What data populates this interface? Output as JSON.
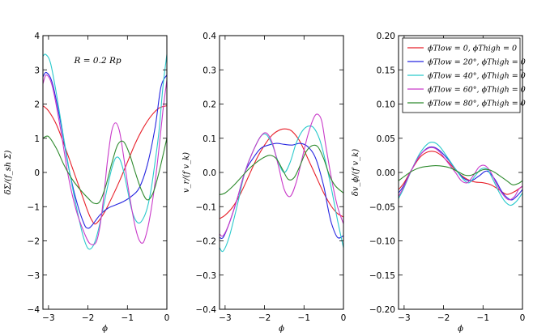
{
  "legend": [
    {
      "label": "ϕTlow = 0, ϕThigh = 0",
      "color": "#e8202a"
    },
    {
      "label": "ϕTlow = 20°, ϕThigh = 0",
      "color": "#2626e0"
    },
    {
      "label": "ϕTlow = 40°, ϕThigh = 0",
      "color": "#2ac9cc"
    },
    {
      "label": "ϕTlow = 60°, ϕThigh = 0",
      "color": "#c93ac9"
    },
    {
      "label": "ϕTlow = 80°, ϕThigh = 0",
      "color": "#2e8a2e"
    }
  ],
  "chart_data": [
    {
      "type": "line",
      "title": "",
      "annotation": "R = 0.2 Rp",
      "xlabel": "ϕ",
      "ylabel": "δΣ/(f_sh Σ)",
      "xlim": [
        -3.14159,
        0
      ],
      "ylim": [
        -4,
        4
      ],
      "xticks": [
        -3,
        -2,
        -1,
        0
      ],
      "yticks": [
        -4,
        -3,
        -2,
        -1,
        0,
        1,
        2,
        3,
        4
      ],
      "ytick_labels": [
        "−4",
        "−3",
        "−2",
        "−1",
        "0",
        "1",
        "2",
        "3",
        "4"
      ],
      "series": [
        {
          "name": "ϕTlow = 0, ϕThigh = 0",
          "color": "#e8202a",
          "x": [
            -3.14,
            -3.0,
            -2.8,
            -2.6,
            -2.4,
            -2.2,
            -2.0,
            -1.9,
            -1.8,
            -1.6,
            -1.4,
            -1.2,
            -1.0,
            -0.8,
            -0.6,
            -0.4,
            -0.2,
            0.0
          ],
          "y": [
            1.95,
            1.8,
            1.4,
            0.8,
            0.15,
            -0.5,
            -1.15,
            -1.4,
            -1.5,
            -1.2,
            -0.75,
            -0.25,
            0.3,
            0.85,
            1.3,
            1.65,
            1.88,
            1.95
          ]
        },
        {
          "name": "ϕTlow = 20°, ϕThigh = 0",
          "color": "#2626e0",
          "x": [
            -3.14,
            -3.05,
            -2.9,
            -2.7,
            -2.5,
            -2.3,
            -2.1,
            -2.0,
            -1.9,
            -1.7,
            -1.5,
            -1.3,
            -1.1,
            -0.9,
            -0.7,
            -0.5,
            -0.3,
            -0.15,
            0.0
          ],
          "y": [
            2.8,
            2.92,
            2.6,
            1.5,
            0.2,
            -0.8,
            -1.5,
            -1.63,
            -1.55,
            -1.25,
            -1.05,
            -0.95,
            -0.85,
            -0.7,
            -0.45,
            0.2,
            1.3,
            2.5,
            2.85
          ]
        },
        {
          "name": "ϕTlow = 40°, ϕThigh = 0",
          "color": "#2ac9cc",
          "x": [
            -3.14,
            -3.07,
            -2.95,
            -2.8,
            -2.6,
            -2.4,
            -2.2,
            -2.1,
            -2.0,
            -1.9,
            -1.8,
            -1.7,
            -1.6,
            -1.5,
            -1.4,
            -1.3,
            -1.2,
            -1.1,
            -1.0,
            -0.9,
            -0.8,
            -0.7,
            -0.6,
            -0.5,
            -0.4,
            -0.3,
            -0.2,
            -0.1,
            0.0
          ],
          "y": [
            3.4,
            3.45,
            3.2,
            2.3,
            0.9,
            -0.4,
            -1.5,
            -1.95,
            -2.22,
            -2.2,
            -1.95,
            -1.5,
            -0.95,
            -0.4,
            0.1,
            0.42,
            0.4,
            0.05,
            -0.5,
            -1.05,
            -1.38,
            -1.48,
            -1.35,
            -1.05,
            -0.5,
            0.3,
            1.2,
            2.5,
            3.45
          ]
        },
        {
          "name": "ϕTlow = 60°, ϕThigh = 0",
          "color": "#c93ac9",
          "x": [
            -3.14,
            -3.05,
            -2.9,
            -2.7,
            -2.5,
            -2.3,
            -2.1,
            -1.95,
            -1.8,
            -1.7,
            -1.6,
            -1.5,
            -1.4,
            -1.3,
            -1.2,
            -1.1,
            -1.0,
            -0.9,
            -0.8,
            -0.7,
            -0.6,
            -0.5,
            -0.4,
            -0.3,
            -0.2,
            -0.1,
            0.0
          ],
          "y": [
            2.6,
            2.85,
            2.5,
            1.3,
            -0.1,
            -1.1,
            -1.75,
            -2.08,
            -2.05,
            -1.6,
            -0.7,
            0.4,
            1.2,
            1.45,
            1.2,
            0.5,
            -0.3,
            -1.0,
            -1.6,
            -1.98,
            -2.05,
            -1.7,
            -1.1,
            -0.3,
            0.7,
            1.8,
            2.7
          ]
        },
        {
          "name": "ϕTlow = 80°, ϕThigh = 0",
          "color": "#2e8a2e",
          "x": [
            -3.14,
            -3.0,
            -2.8,
            -2.6,
            -2.4,
            -2.2,
            -2.0,
            -1.85,
            -1.7,
            -1.55,
            -1.4,
            -1.25,
            -1.1,
            -0.95,
            -0.8,
            -0.65,
            -0.5,
            -0.35,
            -0.2,
            0.0
          ],
          "y": [
            1.0,
            1.05,
            0.7,
            0.2,
            -0.2,
            -0.5,
            -0.75,
            -0.9,
            -0.85,
            -0.4,
            0.25,
            0.8,
            0.9,
            0.55,
            0.0,
            -0.5,
            -0.8,
            -0.6,
            0.0,
            1.0
          ]
        }
      ]
    },
    {
      "type": "line",
      "title": "",
      "xlabel": "ϕ",
      "ylabel": "v_r/(f v_k)",
      "xlim": [
        -3.14159,
        0
      ],
      "ylim": [
        -0.4,
        0.4
      ],
      "xticks": [
        -3,
        -2,
        -1,
        0
      ],
      "yticks": [
        -0.4,
        -0.3,
        -0.2,
        -0.1,
        0.0,
        0.1,
        0.2,
        0.3,
        0.4
      ],
      "ytick_labels": [
        "−0.4",
        "−0.3",
        "−0.2",
        "−0.1",
        "0.0",
        "0.1",
        "0.2",
        "0.3",
        "0.4"
      ],
      "series": [
        {
          "name": "ϕTlow = 0, ϕThigh = 0",
          "color": "#e8202a",
          "x": [
            -3.14,
            -3.0,
            -2.8,
            -2.6,
            -2.4,
            -2.2,
            -2.0,
            -1.8,
            -1.6,
            -1.45,
            -1.3,
            -1.1,
            -0.9,
            -0.7,
            -0.5,
            -0.3,
            -0.15,
            0.0
          ],
          "y": [
            -0.135,
            -0.125,
            -0.1,
            -0.06,
            -0.01,
            0.04,
            0.08,
            0.11,
            0.125,
            0.127,
            0.12,
            0.09,
            0.04,
            -0.01,
            -0.06,
            -0.1,
            -0.12,
            -0.13
          ]
        },
        {
          "name": "ϕTlow = 20°, ϕThigh = 0",
          "color": "#2626e0",
          "x": [
            -3.14,
            -3.05,
            -2.9,
            -2.7,
            -2.5,
            -2.3,
            -2.1,
            -1.9,
            -1.7,
            -1.5,
            -1.3,
            -1.1,
            -0.9,
            -0.7,
            -0.5,
            -0.4,
            -0.3,
            -0.15,
            0.0
          ],
          "y": [
            -0.19,
            -0.19,
            -0.15,
            -0.08,
            0.0,
            0.04,
            0.07,
            0.08,
            0.085,
            0.082,
            0.08,
            0.085,
            0.075,
            0.04,
            -0.04,
            -0.1,
            -0.15,
            -0.19,
            -0.185
          ]
        },
        {
          "name": "ϕTlow = 40°, ϕThigh = 0",
          "color": "#2ac9cc",
          "x": [
            -3.14,
            -3.05,
            -2.9,
            -2.7,
            -2.5,
            -2.3,
            -2.1,
            -1.95,
            -1.8,
            -1.65,
            -1.5,
            -1.35,
            -1.2,
            -1.05,
            -0.9,
            -0.75,
            -0.6,
            -0.45,
            -0.3,
            -0.15,
            0.0
          ],
          "y": [
            -0.22,
            -0.23,
            -0.19,
            -0.1,
            0.0,
            0.06,
            0.105,
            0.11,
            0.08,
            0.03,
            0.0,
            0.03,
            0.085,
            0.12,
            0.135,
            0.13,
            0.095,
            0.03,
            -0.05,
            -0.14,
            -0.22
          ]
        },
        {
          "name": "ϕTlow = 60°, ϕThigh = 0",
          "color": "#c93ac9",
          "x": [
            -3.14,
            -3.05,
            -2.9,
            -2.7,
            -2.5,
            -2.3,
            -2.1,
            -1.95,
            -1.8,
            -1.65,
            -1.5,
            -1.35,
            -1.2,
            -1.05,
            -0.9,
            -0.75,
            -0.65,
            -0.55,
            -0.45,
            -0.3,
            -0.15,
            0.0
          ],
          "y": [
            -0.18,
            -0.185,
            -0.15,
            -0.08,
            0.0,
            0.06,
            0.105,
            0.115,
            0.085,
            0.02,
            -0.05,
            -0.07,
            -0.03,
            0.04,
            0.11,
            0.16,
            0.17,
            0.15,
            0.08,
            -0.02,
            -0.1,
            -0.15
          ]
        },
        {
          "name": "ϕTlow = 80°, ϕThigh = 0",
          "color": "#2e8a2e",
          "x": [
            -3.14,
            -3.0,
            -2.8,
            -2.6,
            -2.4,
            -2.2,
            -2.0,
            -1.85,
            -1.7,
            -1.55,
            -1.4,
            -1.25,
            -1.1,
            -0.95,
            -0.8,
            -0.65,
            -0.5,
            -0.35,
            -0.2,
            0.0
          ],
          "y": [
            -0.065,
            -0.06,
            -0.04,
            -0.015,
            0.01,
            0.03,
            0.045,
            0.05,
            0.04,
            0.01,
            -0.02,
            -0.015,
            0.02,
            0.06,
            0.078,
            0.075,
            0.04,
            -0.01,
            -0.04,
            -0.06
          ]
        }
      ]
    },
    {
      "type": "line",
      "title": "",
      "xlabel": "ϕ",
      "ylabel": "δv_ϕ/(f v_k)",
      "xlim": [
        -3.14159,
        0
      ],
      "ylim": [
        -0.2,
        0.2
      ],
      "xticks": [
        -3,
        -2,
        -1,
        0
      ],
      "yticks": [
        -0.2,
        -0.15,
        -0.1,
        -0.05,
        0.0,
        0.05,
        0.1,
        0.15,
        0.2
      ],
      "ytick_labels": [
        "−0.20",
        "−0.15",
        "−0.10",
        "−0.05",
        "0.00",
        "0.05",
        "0.10",
        "0.15",
        "0.20"
      ],
      "legend_position": "upper-right",
      "series": [
        {
          "name": "ϕTlow = 0, ϕThigh = 0",
          "color": "#e8202a",
          "x": [
            -3.14,
            -3.0,
            -2.8,
            -2.6,
            -2.4,
            -2.2,
            -2.0,
            -1.8,
            -1.6,
            -1.4,
            -1.2,
            -1.0,
            -0.8,
            -0.6,
            -0.4,
            -0.2,
            0.0
          ],
          "y": [
            -0.025,
            -0.015,
            0.005,
            0.022,
            0.03,
            0.03,
            0.022,
            0.01,
            -0.002,
            -0.01,
            -0.014,
            -0.015,
            -0.018,
            -0.025,
            -0.032,
            -0.028,
            -0.02
          ]
        },
        {
          "name": "ϕTlow = 20°, ϕThigh = 0",
          "color": "#2626e0",
          "x": [
            -3.14,
            -3.0,
            -2.8,
            -2.6,
            -2.4,
            -2.25,
            -2.1,
            -1.9,
            -1.7,
            -1.5,
            -1.3,
            -1.1,
            -0.9,
            -0.7,
            -0.5,
            -0.3,
            -0.15,
            0.0
          ],
          "y": [
            -0.03,
            -0.018,
            0.005,
            0.025,
            0.036,
            0.037,
            0.032,
            0.02,
            0.005,
            -0.008,
            -0.012,
            -0.005,
            0.002,
            -0.01,
            -0.03,
            -0.04,
            -0.035,
            -0.025
          ]
        },
        {
          "name": "ϕTlow = 40°, ϕThigh = 0",
          "color": "#2ac9cc",
          "x": [
            -3.14,
            -3.0,
            -2.8,
            -2.6,
            -2.4,
            -2.25,
            -2.1,
            -1.9,
            -1.7,
            -1.5,
            -1.35,
            -1.2,
            -1.05,
            -0.9,
            -0.75,
            -0.6,
            -0.45,
            -0.3,
            -0.15,
            0.0
          ],
          "y": [
            -0.038,
            -0.022,
            0.005,
            0.028,
            0.042,
            0.044,
            0.038,
            0.022,
            0.005,
            -0.01,
            -0.015,
            -0.005,
            0.005,
            0.005,
            -0.01,
            -0.028,
            -0.042,
            -0.048,
            -0.042,
            -0.03
          ]
        },
        {
          "name": "ϕTlow = 60°, ϕThigh = 0",
          "color": "#c93ac9",
          "x": [
            -3.14,
            -3.0,
            -2.8,
            -2.6,
            -2.4,
            -2.25,
            -2.1,
            -1.9,
            -1.7,
            -1.55,
            -1.4,
            -1.25,
            -1.1,
            -0.95,
            -0.8,
            -0.65,
            -0.5,
            -0.35,
            -0.2,
            -0.1,
            0.0
          ],
          "y": [
            -0.035,
            -0.02,
            0.005,
            0.025,
            0.035,
            0.036,
            0.03,
            0.015,
            0.0,
            -0.012,
            -0.015,
            -0.005,
            0.008,
            0.01,
            0.0,
            -0.018,
            -0.032,
            -0.04,
            -0.035,
            -0.025,
            -0.02
          ]
        },
        {
          "name": "ϕTlow = 80°, ϕThigh = 0",
          "color": "#2e8a2e",
          "x": [
            -3.14,
            -3.0,
            -2.8,
            -2.6,
            -2.4,
            -2.2,
            -2.0,
            -1.8,
            -1.6,
            -1.45,
            -1.3,
            -1.15,
            -1.0,
            -0.85,
            -0.7,
            -0.55,
            -0.4,
            -0.25,
            -0.1,
            0.0
          ],
          "y": [
            -0.012,
            -0.006,
            0.002,
            0.007,
            0.009,
            0.01,
            0.009,
            0.006,
            0.0,
            -0.004,
            -0.004,
            0.0,
            0.004,
            0.004,
            0.0,
            -0.006,
            -0.012,
            -0.018,
            -0.016,
            -0.012
          ]
        }
      ]
    }
  ]
}
